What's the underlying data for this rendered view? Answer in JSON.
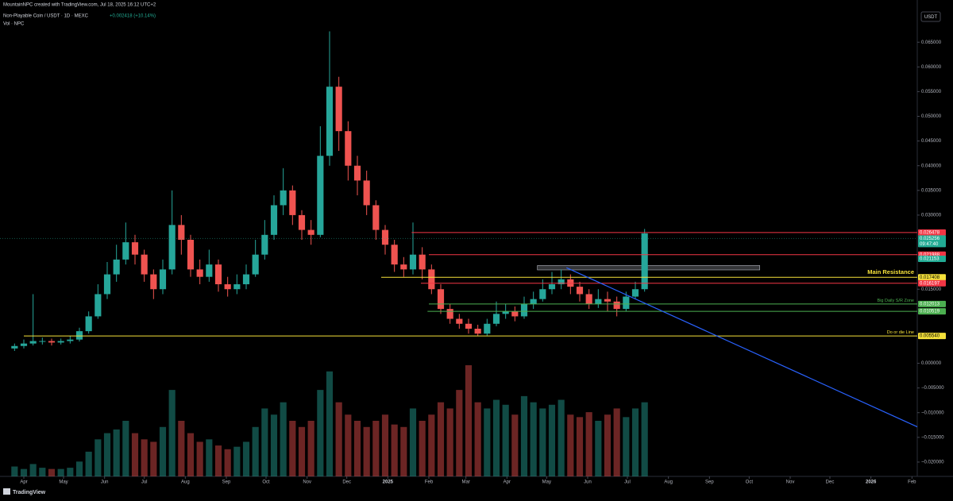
{
  "header": {
    "credit": "MountainNPC created with TradingView.com, Jul 18, 2025 16:12 UTC+2",
    "symbol": "Non-Playable Coin / USDT · 1D · MEXC",
    "change": "+0.002418 (+10.14%)",
    "volume_label": "Vol · NPC",
    "currency": "USDT",
    "brand": "TradingView"
  },
  "chart_data": {
    "type": "candlestick",
    "up_color": "#26a69a",
    "down_color": "#ef5350",
    "xlim": [
      -18,
      675
    ],
    "ylim": [
      -0.0229,
      0.0713
    ],
    "xticks": [
      {
        "value": 0,
        "label": "Apr"
      },
      {
        "value": 30,
        "label": "May"
      },
      {
        "value": 61,
        "label": "Jun"
      },
      {
        "value": 91,
        "label": "Jul"
      },
      {
        "value": 122,
        "label": "Aug"
      },
      {
        "value": 153,
        "label": "Sep"
      },
      {
        "value": 183,
        "label": "Oct"
      },
      {
        "value": 214,
        "label": "Nov"
      },
      {
        "value": 244,
        "label": "Dec"
      },
      {
        "value": 275,
        "label": "2025"
      },
      {
        "value": 306,
        "label": "Feb"
      },
      {
        "value": 334,
        "label": "Mar"
      },
      {
        "value": 365,
        "label": "Apr"
      },
      {
        "value": 395,
        "label": "May"
      },
      {
        "value": 426,
        "label": "Jun"
      },
      {
        "value": 456,
        "label": "Jul"
      },
      {
        "value": 487,
        "label": "Aug"
      },
      {
        "value": 518,
        "label": "Sep"
      },
      {
        "value": 548,
        "label": "Oct"
      },
      {
        "value": 579,
        "label": "Nov"
      },
      {
        "value": 609,
        "label": "Dec"
      },
      {
        "value": 640,
        "label": "2026"
      },
      {
        "value": 671,
        "label": "Feb"
      }
    ],
    "yticks": [
      {
        "value": 0.065,
        "label": "0.065000"
      },
      {
        "value": 0.06,
        "label": "0.060000"
      },
      {
        "value": 0.055,
        "label": "0.055000"
      },
      {
        "value": 0.05,
        "label": "0.050000"
      },
      {
        "value": 0.045,
        "label": "0.045000"
      },
      {
        "value": 0.04,
        "label": "0.040000"
      },
      {
        "value": 0.035,
        "label": "0.035000"
      },
      {
        "value": 0.03,
        "label": "0.030000"
      },
      {
        "value": 0.015,
        "label": "0.015000"
      },
      {
        "value": 0.0,
        "label": "0.000000"
      },
      {
        "value": -0.005,
        "label": "−0.005000"
      },
      {
        "value": -0.01,
        "label": "−0.010000"
      },
      {
        "value": -0.015,
        "label": "−0.015000"
      },
      {
        "value": -0.02,
        "label": "−0.020000"
      }
    ],
    "candles": {
      "x": [
        -7,
        0,
        7,
        14,
        21,
        28,
        35,
        42,
        49,
        56,
        63,
        70,
        77,
        84,
        91,
        98,
        105,
        112,
        119,
        126,
        133,
        140,
        147,
        154,
        161,
        168,
        175,
        182,
        189,
        196,
        203,
        210,
        217,
        224,
        231,
        238,
        245,
        252,
        259,
        266,
        273,
        280,
        287,
        294,
        301,
        308,
        315,
        322,
        329,
        336,
        343,
        350,
        357,
        364,
        371,
        378,
        385,
        392,
        399,
        406,
        413,
        420,
        427,
        434,
        441,
        448,
        455,
        462,
        469
      ],
      "open": [
        0.003,
        0.0035,
        0.004,
        0.0045,
        0.0045,
        0.0042,
        0.0045,
        0.0048,
        0.0065,
        0.0095,
        0.014,
        0.018,
        0.021,
        0.0245,
        0.022,
        0.018,
        0.015,
        0.019,
        0.028,
        0.025,
        0.019,
        0.0175,
        0.02,
        0.016,
        0.015,
        0.016,
        0.018,
        0.022,
        0.026,
        0.032,
        0.035,
        0.03,
        0.027,
        0.026,
        0.042,
        0.056,
        0.047,
        0.04,
        0.037,
        0.032,
        0.027,
        0.024,
        0.02,
        0.019,
        0.022,
        0.019,
        0.015,
        0.011,
        0.009,
        0.008,
        0.007,
        0.006,
        0.008,
        0.01,
        0.0105,
        0.0095,
        0.012,
        0.013,
        0.015,
        0.016,
        0.017,
        0.0155,
        0.014,
        0.012,
        0.013,
        0.0125,
        0.011,
        0.0135,
        0.015
      ],
      "high": [
        0.004,
        0.0048,
        0.014,
        0.0052,
        0.005,
        0.005,
        0.0055,
        0.0072,
        0.0105,
        0.016,
        0.0205,
        0.024,
        0.0285,
        0.026,
        0.023,
        0.019,
        0.021,
        0.035,
        0.03,
        0.026,
        0.021,
        0.023,
        0.021,
        0.0175,
        0.018,
        0.02,
        0.025,
        0.029,
        0.034,
        0.0395,
        0.036,
        0.031,
        0.029,
        0.048,
        0.0672,
        0.058,
        0.049,
        0.042,
        0.039,
        0.033,
        0.028,
        0.025,
        0.0215,
        0.0285,
        0.0235,
        0.02,
        0.016,
        0.012,
        0.01,
        0.009,
        0.0078,
        0.009,
        0.0125,
        0.012,
        0.0115,
        0.0135,
        0.0145,
        0.017,
        0.0185,
        0.019,
        0.018,
        0.0165,
        0.015,
        0.015,
        0.0145,
        0.0135,
        0.0145,
        0.0165,
        0.0272
      ],
      "low": [
        0.0025,
        0.003,
        0.0036,
        0.0038,
        0.0036,
        0.0038,
        0.004,
        0.0044,
        0.006,
        0.009,
        0.013,
        0.0165,
        0.02,
        0.02,
        0.0165,
        0.013,
        0.014,
        0.018,
        0.022,
        0.0175,
        0.016,
        0.0165,
        0.0145,
        0.0135,
        0.014,
        0.015,
        0.0175,
        0.021,
        0.025,
        0.03,
        0.028,
        0.025,
        0.024,
        0.0255,
        0.04,
        0.043,
        0.037,
        0.034,
        0.03,
        0.025,
        0.022,
        0.0185,
        0.0175,
        0.018,
        0.017,
        0.014,
        0.01,
        0.008,
        0.007,
        0.006,
        0.0055,
        0.0056,
        0.0075,
        0.009,
        0.0085,
        0.009,
        0.011,
        0.0125,
        0.014,
        0.015,
        0.014,
        0.0125,
        0.011,
        0.0112,
        0.0105,
        0.0095,
        0.0105,
        0.013,
        0.0145
      ],
      "close": [
        0.0035,
        0.004,
        0.0045,
        0.0045,
        0.0042,
        0.0045,
        0.0048,
        0.0065,
        0.0095,
        0.014,
        0.018,
        0.021,
        0.0245,
        0.022,
        0.018,
        0.015,
        0.019,
        0.028,
        0.025,
        0.019,
        0.0175,
        0.02,
        0.016,
        0.015,
        0.016,
        0.018,
        0.022,
        0.026,
        0.032,
        0.035,
        0.03,
        0.027,
        0.026,
        0.042,
        0.056,
        0.047,
        0.04,
        0.037,
        0.032,
        0.027,
        0.024,
        0.02,
        0.019,
        0.022,
        0.019,
        0.015,
        0.011,
        0.009,
        0.008,
        0.007,
        0.006,
        0.008,
        0.01,
        0.0105,
        0.0095,
        0.012,
        0.013,
        0.015,
        0.016,
        0.017,
        0.0155,
        0.014,
        0.012,
        0.013,
        0.0125,
        0.011,
        0.0135,
        0.015,
        0.0263
      ],
      "volume": [
        8,
        6,
        10,
        7,
        6,
        6,
        7,
        12,
        20,
        30,
        35,
        38,
        45,
        35,
        30,
        28,
        40,
        70,
        45,
        35,
        28,
        30,
        25,
        22,
        24,
        28,
        40,
        55,
        50,
        60,
        45,
        40,
        45,
        70,
        85,
        60,
        50,
        45,
        40,
        45,
        50,
        42,
        40,
        55,
        45,
        50,
        60,
        55,
        70,
        90,
        60,
        55,
        62,
        58,
        50,
        65,
        60,
        55,
        58,
        62,
        50,
        48,
        52,
        45,
        50,
        55,
        48,
        55,
        60
      ]
    },
    "levels": [
      {
        "price": {
          "value": 0.026478,
          "label": "0.026478"
        },
        "color": "#f23645",
        "from": 293
      },
      {
        "price": {
          "value": 0.025256,
          "label": "0.025256"
        },
        "color": "#22ab94",
        "countdown": "09:47:40"
      },
      {
        "price": {
          "value": 0.021988,
          "label": "0.021988"
        },
        "color": "#f23645",
        "from": 306
      },
      {
        "price": {
          "value": 0.021153,
          "label": "0.021153"
        },
        "color": "#22ab94"
      },
      {
        "price": {
          "value": 0.017408,
          "label": "0.017408"
        },
        "color": "#f5e13a",
        "from": 270,
        "note": "Main Resistance"
      },
      {
        "price": {
          "value": 0.016197,
          "label": "0.016197"
        },
        "color": "#f23645",
        "from": 300
      },
      {
        "price": {
          "value": 0.012013,
          "label": "0.012013"
        },
        "color": "#4caf50",
        "from": 306,
        "note": "Big Daily S/R Zone"
      },
      {
        "price": {
          "value": 0.010519,
          "label": "0.010519"
        },
        "color": "#4caf50",
        "from": 305
      },
      {
        "price": {
          "value": 0.00554,
          "label": "0.005540"
        },
        "color": "#f5e13a",
        "from": 0,
        "note": "Do or die Line"
      }
    ],
    "zone": {
      "x": [
        388,
        556
      ],
      "y": [
        0.0189,
        0.0198
      ]
    },
    "trendline": {
      "x": [
        410,
        678
      ],
      "y": [
        0.01935,
        -0.01323
      ],
      "color": "#2962ff"
    }
  }
}
